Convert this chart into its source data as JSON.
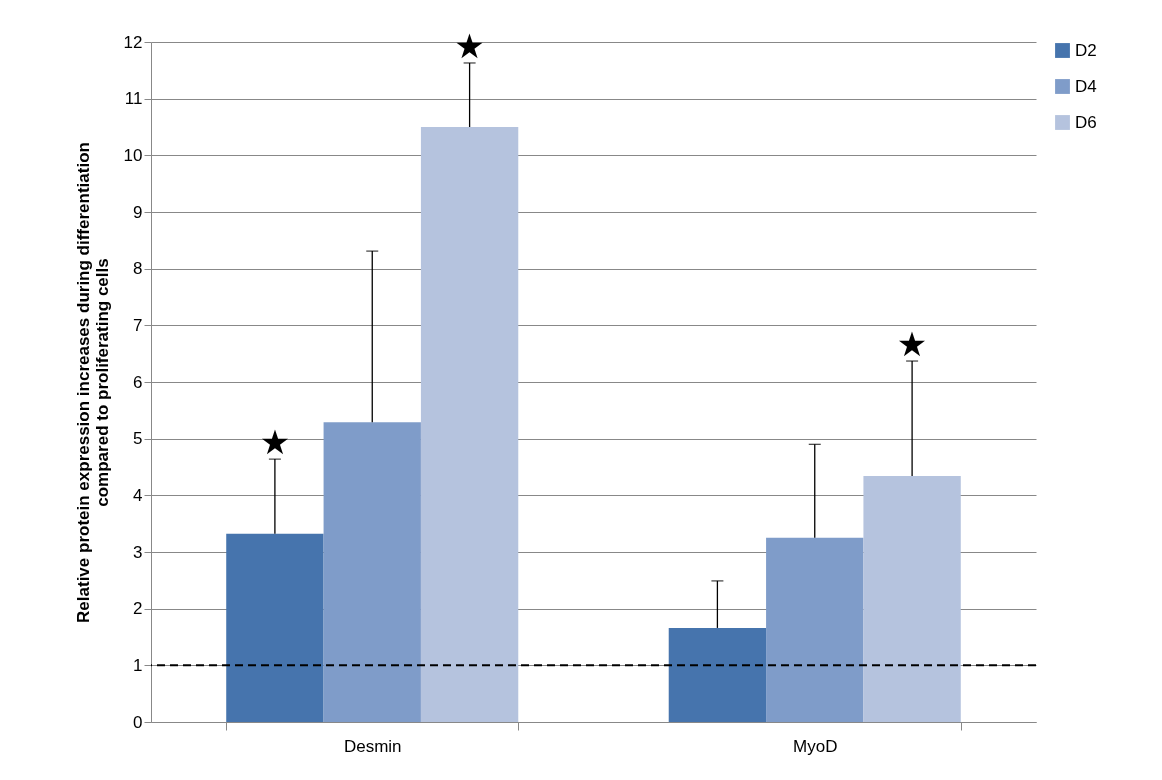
{
  "chart_data": {
    "type": "bar",
    "ylabel": "Relative protein expression increases during differentiation compared to proliferating cells",
    "categories": [
      "Desmin",
      "MyoD"
    ],
    "series": [
      {
        "name": "D2",
        "color": "#4674ad",
        "values": [
          3.32,
          1.66
        ],
        "errors": [
          [
            3.32,
            4.64
          ],
          [
            1.66,
            2.49
          ]
        ]
      },
      {
        "name": "D4",
        "color": "#7f9cc9",
        "values": [
          5.29,
          3.25
        ],
        "errors": [
          [
            5.29,
            8.31
          ],
          [
            3.25,
            4.9
          ]
        ]
      },
      {
        "name": "D6",
        "color": "#b5c3de",
        "values": [
          10.5,
          4.34
        ],
        "errors": [
          [
            10.5,
            11.63
          ],
          [
            4.34,
            6.37
          ]
        ]
      }
    ],
    "ylim": [
      0,
      12
    ],
    "yticks": [
      0,
      1,
      2,
      3,
      4,
      5,
      6,
      7,
      8,
      9,
      10,
      11,
      12
    ],
    "grid": "y",
    "legend": "right",
    "ref_lines": [
      {
        "axis": "y",
        "value": 1,
        "line_style": "dashed",
        "color": "#000000"
      }
    ],
    "annotations": [
      "★",
      "★",
      "★"
    ]
  }
}
